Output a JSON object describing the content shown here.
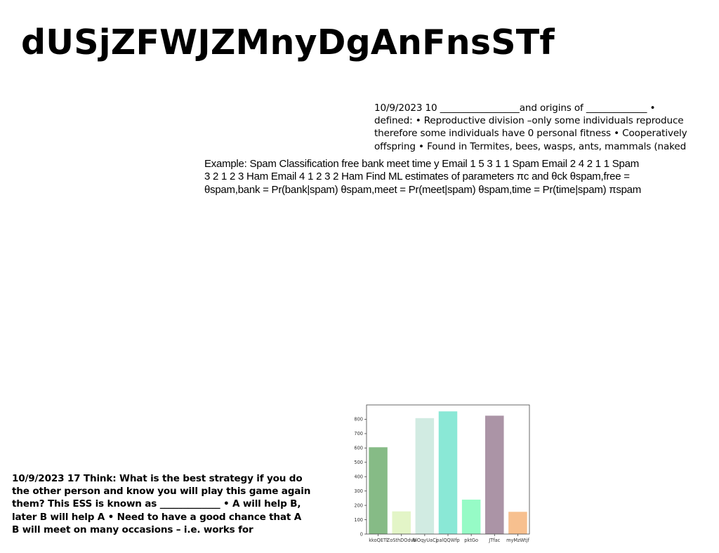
{
  "page": {
    "title": "dUSjZFWJZMnyDgAnFnsSTf"
  },
  "blocks": {
    "block_a": "10/9/2023 10 _________________and origins of _____________ •\ndefined: • Reproductive division –only some individuals reproduce\ntherefore some individuals have 0 personal fitness • Cooperatively\noffspring • Found in Termites, bees, wasps, ants, mammals (naked",
    "block_b": "Example: Spam Classification free bank meet time y Email 1 5 3 1 1 Spam Email 2 4 2 1 1 Spam\n3 2 1 2 3 Ham Email 4 1 2 3 2 Ham Find ML estimates of parameters πc and θck θspam,free =\nθspam,bank = Pr(bank|spam) θspam,meet = Pr(meet|spam) θspam,time = Pr(time|spam) πspam",
    "block_c": "10/9/2023 17 Think: What is the best strategy if you do\nthe other person and know you will play this game again\nthem? This ESS is known as _____________ • A will help B,\nlater B will help A • Need to have a good chance that A\nB will meet on many occasions – i.e. works for"
  },
  "chart_data": {
    "type": "bar",
    "title": "",
    "xlabel": "",
    "ylabel": "",
    "categories": [
      "kkoQETl",
      "ZoSthDOdvb",
      "NlOqyUaCj",
      "palQQWfp",
      "pktGo",
      "JTfac",
      "myMzWtjf"
    ],
    "values": [
      605,
      158,
      808,
      855,
      240,
      825,
      155
    ],
    "colors": [
      "#86bb86",
      "#e3f5c7",
      "#d1ebe2",
      "#8ae8d6",
      "#96fbc6",
      "#ab94a6",
      "#f7c08f"
    ],
    "ylim": [
      0,
      900
    ],
    "yticks": [
      0,
      100,
      200,
      300,
      400,
      500,
      600,
      700,
      800
    ],
    "grid": false
  }
}
